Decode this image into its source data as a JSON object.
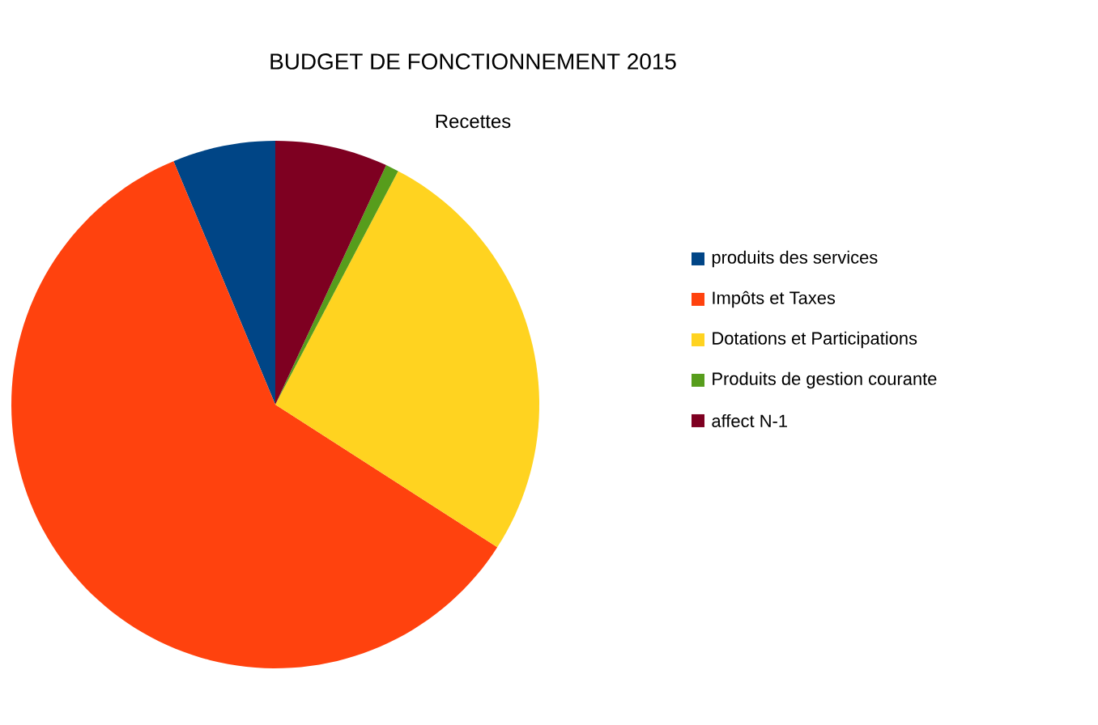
{
  "chart_data": {
    "type": "pie",
    "title": "BUDGET DE FONCTIONNEMENT 2015",
    "subtitle": "Recettes",
    "categories": [
      "produits des services",
      "Impôts et Taxes",
      "Dotations et Participations",
      "Produits de gestion courante",
      "affect N-1"
    ],
    "values": [
      6.3,
      59.6,
      26.4,
      0.8,
      6.9
    ],
    "colors": [
      "#004586",
      "#ff420e",
      "#ffd320",
      "#579d1c",
      "#7e0021"
    ],
    "legend": "right"
  }
}
